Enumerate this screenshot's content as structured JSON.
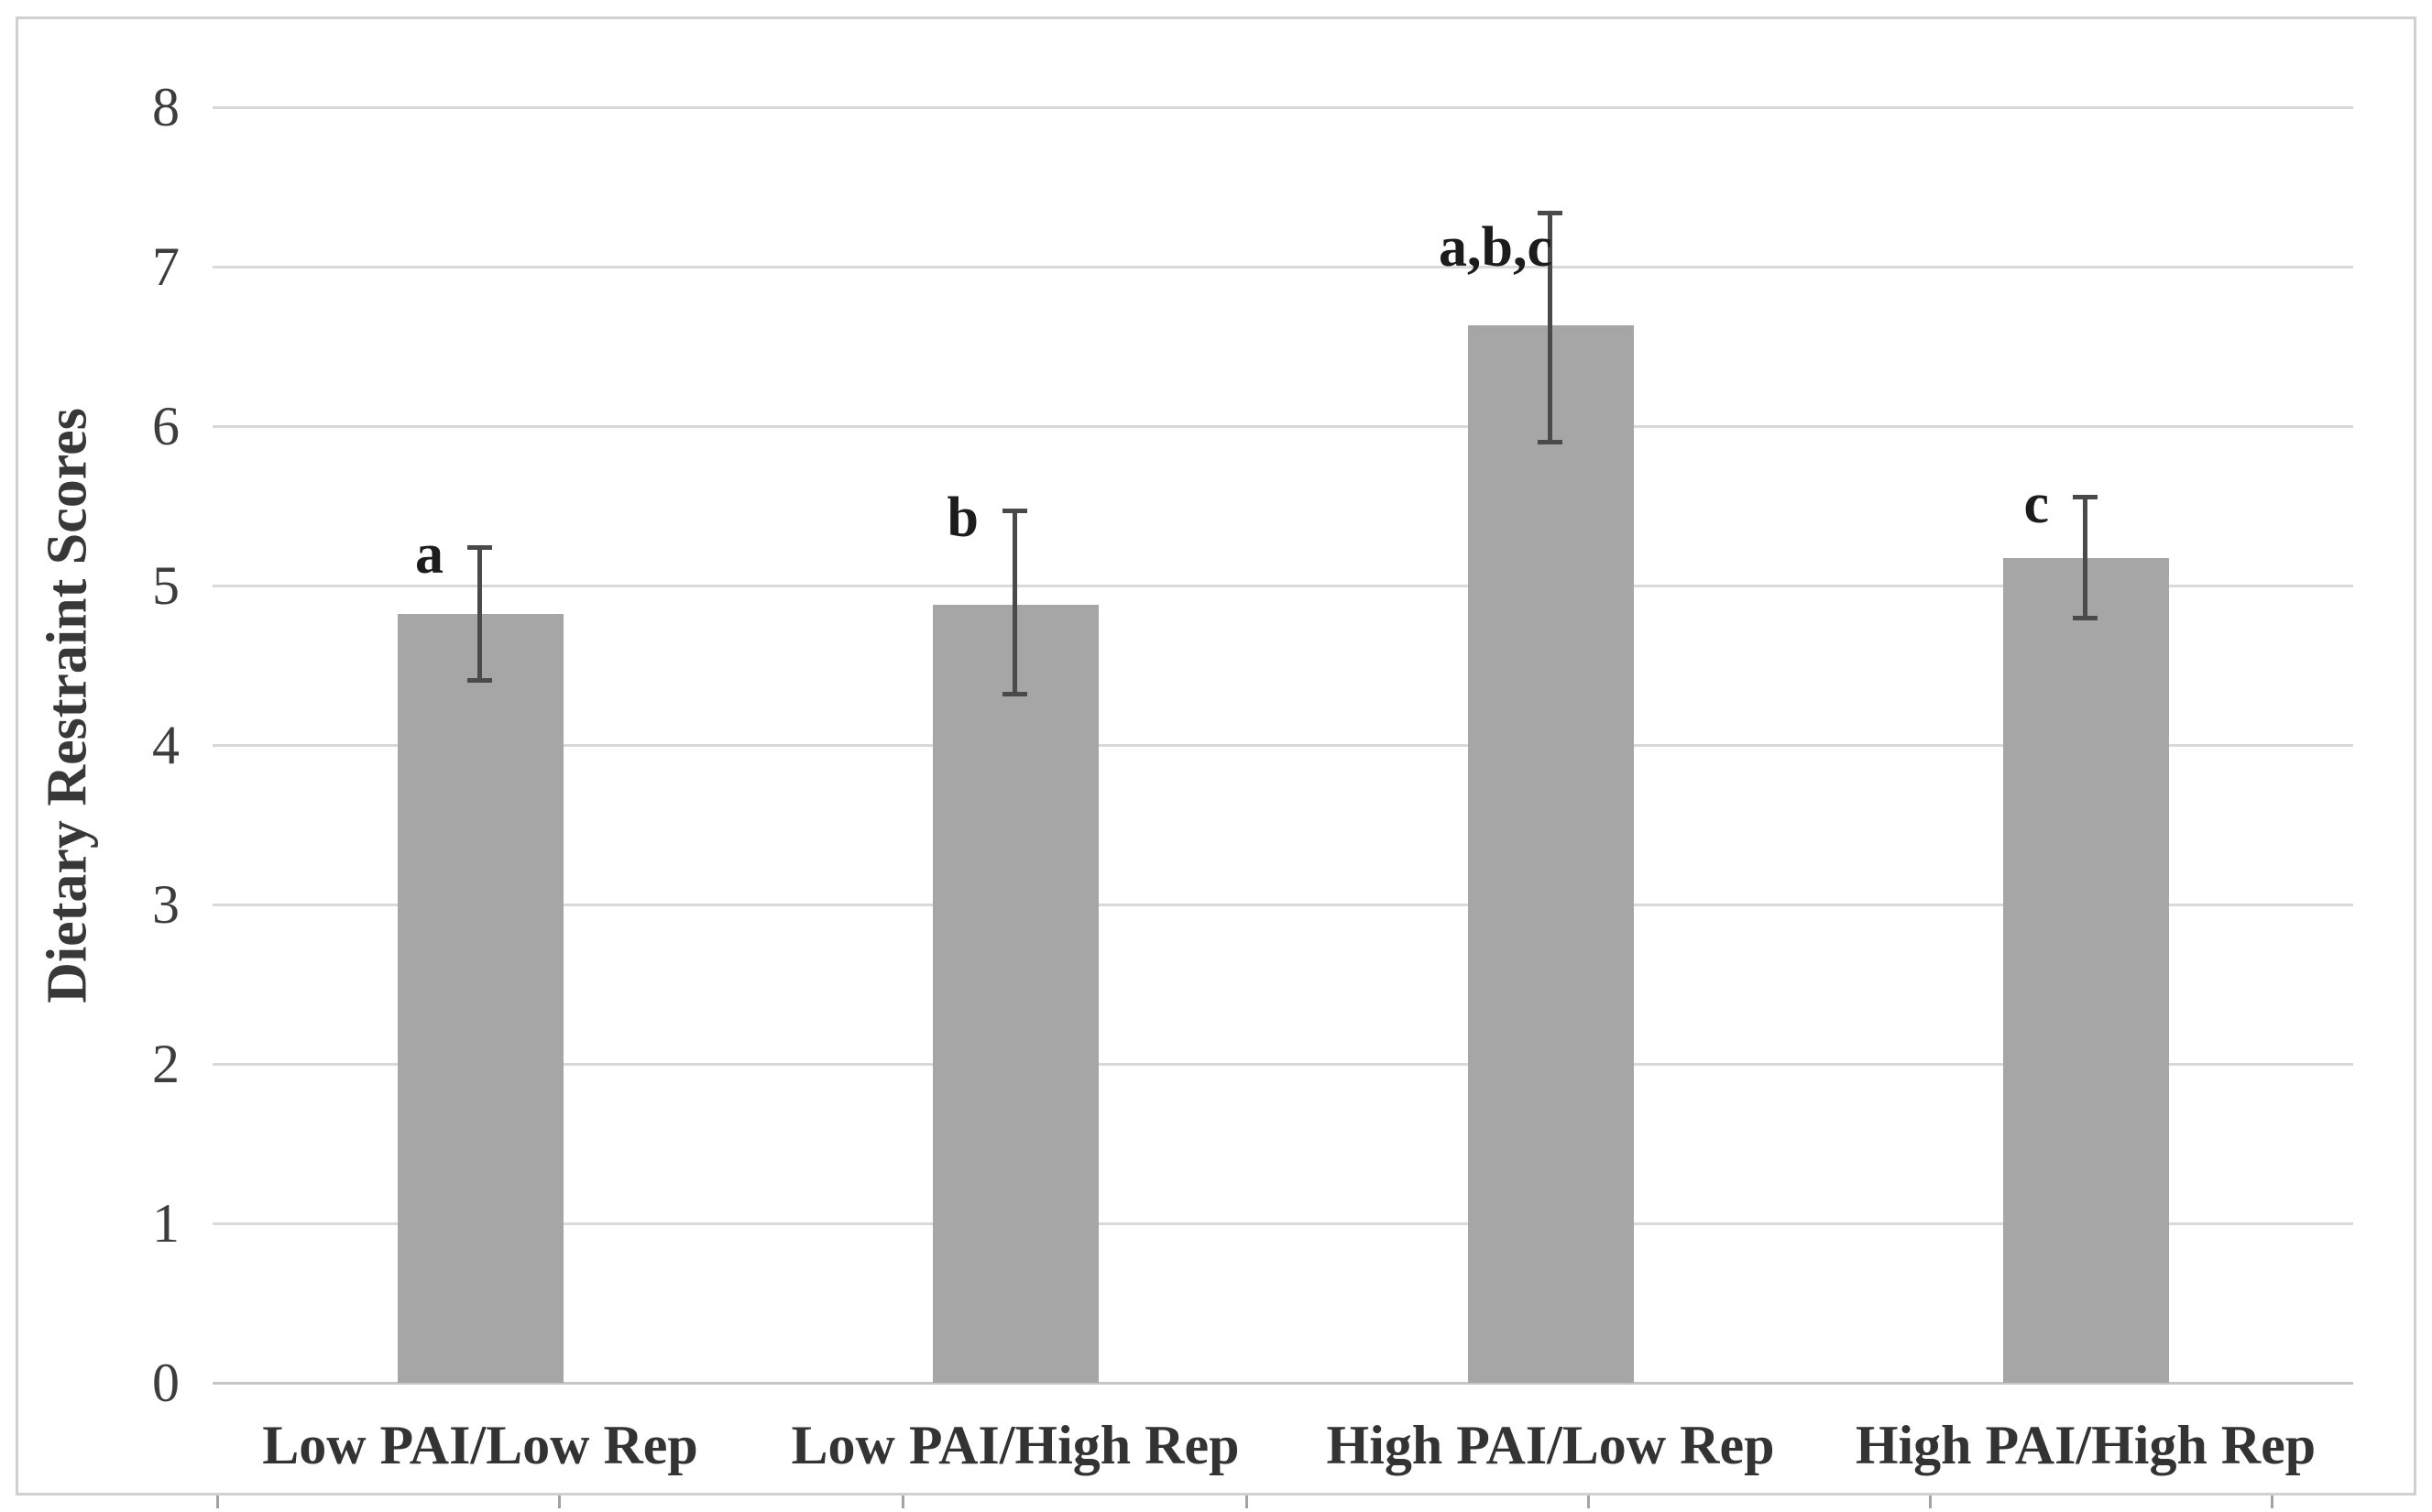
{
  "chart_data": {
    "type": "bar",
    "title": "",
    "xlabel": "",
    "ylabel": "Dietary Restraint Scores",
    "categories": [
      "Low PAI/Low Rep",
      "Low PAI/High Rep",
      "High PAI/Low Rep",
      "High PAI/High Rep"
    ],
    "values": [
      4.82,
      4.88,
      6.63,
      5.17
    ],
    "error_upper": [
      5.24,
      5.47,
      7.34,
      5.56
    ],
    "error_lower": [
      4.41,
      4.32,
      5.9,
      4.8
    ],
    "point_labels": [
      "a",
      "b",
      "a,b,c",
      "c"
    ],
    "ytick_labels": [
      "0",
      "1",
      "2",
      "3",
      "4",
      "5",
      "6",
      "7",
      "8"
    ],
    "ylim": [
      0,
      8
    ],
    "grid": true,
    "legend": false,
    "colors": {
      "bar_fill": "#a6a6a6",
      "error_bar": "#4a4a4a",
      "gridline": "#d9d9d9",
      "axis_line": "#c6c6c6",
      "figure_border": "#d0d0d0",
      "ytick_text": "#3d3d3d",
      "category_text": "#333333",
      "annotation_text": "#1c1c1c",
      "ylabel_text": "#383838",
      "bottom_tick": "#a3a3a3",
      "background": "#ffffff"
    },
    "figure_artifacts": {
      "bottom_edge_tick_xs": [
        237,
        610,
        985,
        1360,
        1733,
        2106,
        2479
      ]
    }
  }
}
